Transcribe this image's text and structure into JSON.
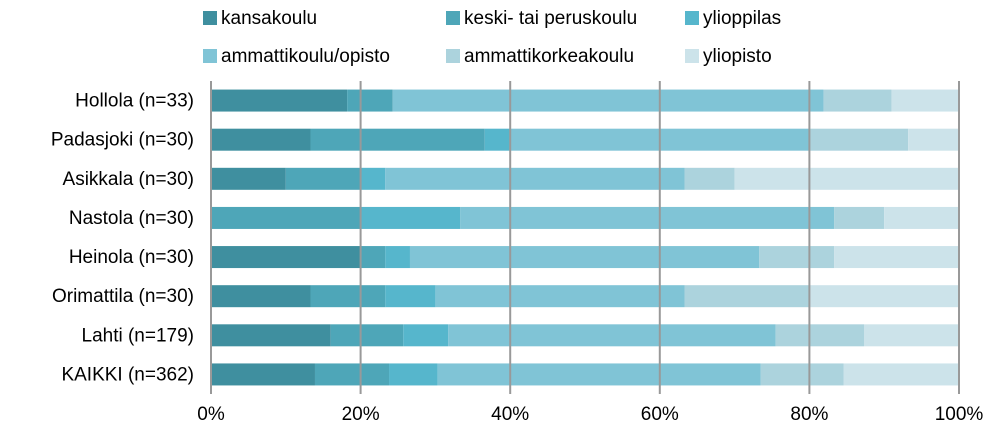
{
  "chart_data": {
    "type": "stacked_bar_horizontal",
    "categories": [
      "Hollola (n=33)",
      "Padasjoki (n=30)",
      "Asikkala (n=30)",
      "Nastola (n=30)",
      "Heinola (n=30)",
      "Orimattila (n=30)",
      "Lahti (n=179)",
      "KAIKKI (n=362)"
    ],
    "series": [
      {
        "name": "kansakoulu",
        "color": "#3f8f9f",
        "values": [
          18.2,
          13.3,
          10,
          0,
          20,
          13.3,
          16.0,
          13.9
        ]
      },
      {
        "name": "keski- tai peruskoulu",
        "color": "#4ea6b8",
        "values": [
          6.1,
          23.3,
          10,
          20,
          3.3,
          10,
          9.7,
          9.9
        ]
      },
      {
        "name": "ylioppilas",
        "color": "#56b6cc",
        "values": [
          0,
          3.3,
          3.3,
          13.3,
          3.3,
          6.7,
          6.0,
          6.5
        ]
      },
      {
        "name": "ammattikoulu/opisto",
        "color": "#80c4d6",
        "values": [
          57.6,
          40,
          40,
          50,
          46.7,
          33.3,
          43.8,
          43.2
        ]
      },
      {
        "name": "ammattikorkeakoulu",
        "color": "#acd3dd",
        "values": [
          9.1,
          13.3,
          6.7,
          6.7,
          10,
          16.7,
          11.8,
          11.1
        ]
      },
      {
        "name": "yliopisto",
        "color": "#cce3ea",
        "values": [
          9.1,
          6.7,
          30,
          10,
          16.7,
          20,
          12.7,
          15.4
        ]
      }
    ],
    "xlim": [
      0,
      100
    ],
    "xticks": [
      {
        "value": 0,
        "label": "0%"
      },
      {
        "value": 20,
        "label": "20%"
      },
      {
        "value": 40,
        "label": "40%"
      },
      {
        "value": 60,
        "label": "60%"
      },
      {
        "value": 80,
        "label": "80%"
      },
      {
        "value": 100,
        "label": "100%"
      }
    ],
    "grid": true,
    "legend": "top"
  }
}
